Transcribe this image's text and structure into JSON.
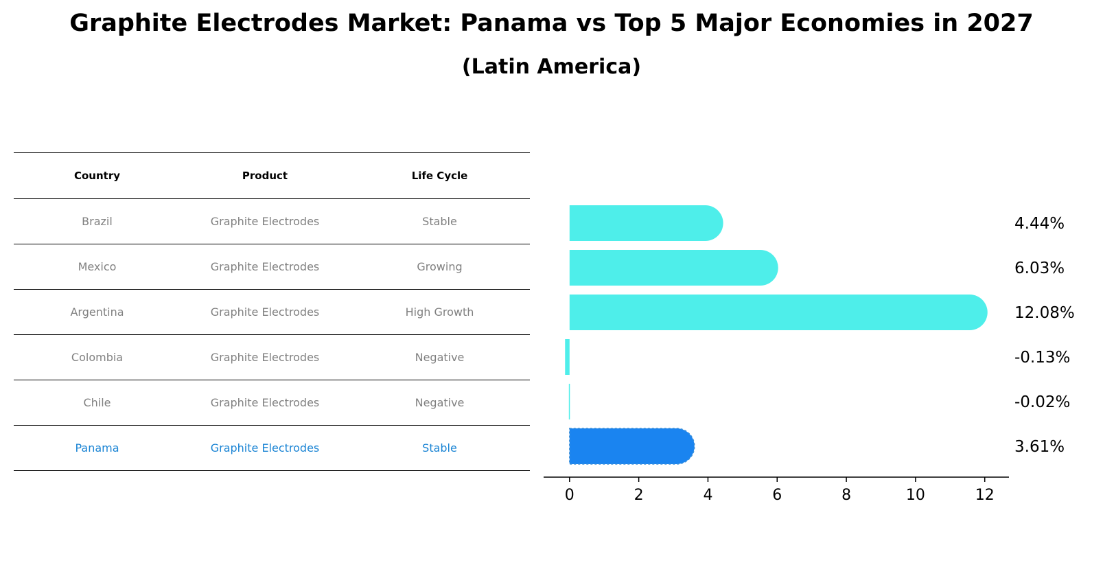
{
  "title": "Graphite Electrodes Market: Panama vs Top 5 Major Economies in 2027",
  "subtitle": "(Latin America)",
  "table": {
    "headers": [
      "Country",
      "Product",
      "Life Cycle"
    ],
    "rows": [
      {
        "country": "Brazil",
        "product": "Graphite Electrodes",
        "life_cycle": "Stable"
      },
      {
        "country": "Mexico",
        "product": "Graphite Electrodes",
        "life_cycle": "Growing"
      },
      {
        "country": "Argentina",
        "product": "Graphite Electrodes",
        "life_cycle": "High Growth"
      },
      {
        "country": "Colombia",
        "product": "Graphite Electrodes",
        "life_cycle": "Negative"
      },
      {
        "country": "Chile",
        "product": "Graphite Electrodes",
        "life_cycle": "Negative"
      },
      {
        "country": "Panama",
        "product": "Graphite Electrodes",
        "life_cycle": "Stable"
      }
    ]
  },
  "colors": {
    "bar": "#4eeeea",
    "highlight_bar": "#1a84f0",
    "highlight_text": "#1a84d4",
    "table_text": "#808080"
  },
  "chart_data": {
    "type": "bar",
    "orientation": "horizontal",
    "categories": [
      "Brazil",
      "Mexico",
      "Argentina",
      "Colombia",
      "Chile",
      "Panama"
    ],
    "values": [
      4.44,
      6.03,
      12.08,
      -0.13,
      -0.02,
      3.61
    ],
    "value_labels": [
      "4.44%",
      "6.03%",
      "12.08%",
      "-0.13%",
      "-0.02%",
      "3.61%"
    ],
    "highlight": "Panama",
    "xticks": [
      0,
      2,
      4,
      6,
      8,
      10,
      12
    ],
    "xlim": [
      -0.75,
      12.7
    ],
    "grid": false
  }
}
